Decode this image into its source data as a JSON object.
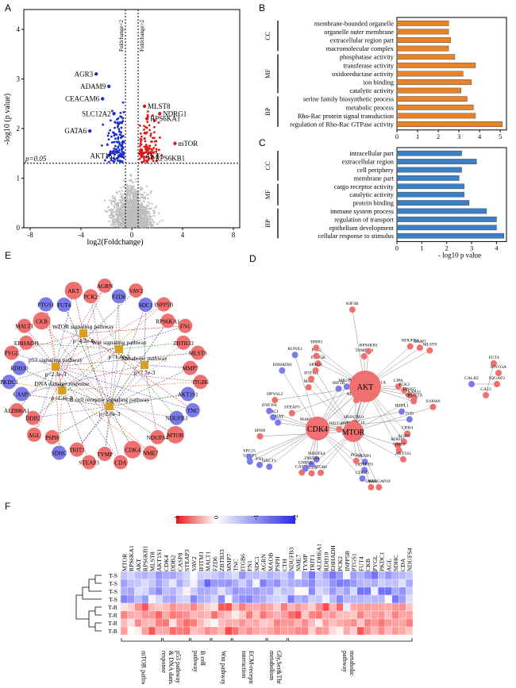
{
  "panels": {
    "A": {
      "label": "A",
      "xlabel": "log2(Foldchange)",
      "ylabel": "-log10 (p value)",
      "vline_left_label": "Foldchange<2",
      "vline_right_label": "Foldchange>2",
      "p_label": "p=0.05",
      "xticks": [
        "-8",
        "-4",
        "0",
        "4",
        "8"
      ],
      "yticks": [
        "0",
        "1",
        "2",
        "3",
        "4"
      ],
      "gene_labels": [
        "AGR3",
        "ADAM9",
        "CEACAM6",
        "SLC12A2",
        "GATA6",
        "AKT1S1",
        "MLST8",
        "NDRG1",
        "RPS6KA1",
        "mTOR",
        "AKT",
        "RPS6KB1"
      ]
    },
    "B": {
      "label": "B",
      "xlabel": "- log10 p value",
      "xticks": [
        "0",
        "1",
        "2",
        "3",
        "4",
        "5"
      ],
      "groups": [
        "CC",
        "MF",
        "BP"
      ],
      "bar_color": "#e8832a"
    },
    "C": {
      "label": "C",
      "xlabel": "- log10 p value",
      "xticks": [
        "0",
        "1",
        "2",
        "3",
        "4"
      ],
      "groups": [
        "CC",
        "MF",
        "BP"
      ],
      "bar_color": "#3d7fc4"
    },
    "D": {
      "label": "D",
      "hubs": [
        "AKT",
        "CDK4",
        "MTOR"
      ],
      "node_labels": [
        "LIPA",
        "OXCT1",
        "ALDH6A1",
        "CBR4",
        "CRAT",
        "RAB31",
        "HSD17B11",
        "EHHADH",
        "RDH10",
        "STEAP3",
        "IRF1B",
        "ARHGAP18",
        "INPP5B",
        "HSDL1",
        "ITGB6",
        "KIF3B",
        "SENP1",
        "SPI00",
        "NDUFB3",
        "NDUFS4",
        "MAZ",
        "PCK2",
        "FN1",
        "LGALS3BP",
        "AGRN",
        "SDC1",
        "FUT4",
        "MYO3A",
        "CALB2",
        "IQGAP3",
        "CA13",
        "MB21B1",
        "OAS1",
        "PTS2",
        "IVD",
        "SCD5",
        "TOMM20",
        "DHTKD1",
        "TNC",
        "MMP7",
        "ZNF593",
        "IFITM1",
        "EPHS5",
        "UBEP1",
        "SOD2",
        "NME7",
        "ZNF394",
        "S100A6",
        "HIST1B1A",
        "RUNX1",
        "AKT1S1",
        "DPYSL2",
        "MALT1",
        "PCK1",
        "TPPP3",
        "ANAPC10",
        "CASP8",
        "RPS6KB1",
        "CDC25",
        "MARCKS",
        "MLST8",
        "GNB1L",
        "SPAG1",
        "TRMT2A",
        "SPC25",
        "TRMT61A"
      ]
    },
    "E": {
      "label": "E",
      "pathways": [
        {
          "name": "mTOR signaling pathway",
          "p": "p=4.2e-6"
        },
        {
          "name": "Wnt signaling pathway",
          "p": "p=1.4e-3"
        },
        {
          "name": "p53 signaling pathway",
          "p": "p=2.1e-3"
        },
        {
          "name": "Metabolic pathway",
          "p": "p=7.7e-3"
        },
        {
          "name": "DNA damage response",
          "p": "p=1.4e-3"
        },
        {
          "name": "B cell receptor signaling pathway",
          "p": "p=2.8e-3"
        }
      ],
      "nodes": [
        {
          "name": "AGRN",
          "c": "r"
        },
        {
          "name": "FZD6",
          "c": "b"
        },
        {
          "name": "VAV2",
          "c": "r"
        },
        {
          "name": "SDC1",
          "c": "b"
        },
        {
          "name": "INPP5B",
          "c": "r"
        },
        {
          "name": "RPS6KA1",
          "c": "r"
        },
        {
          "name": "FN1",
          "c": "r"
        },
        {
          "name": "ZBTB33",
          "c": "r"
        },
        {
          "name": "MLST8",
          "c": "r"
        },
        {
          "name": "MMP7",
          "c": "r"
        },
        {
          "name": "ITGB6",
          "c": "r"
        },
        {
          "name": "AKT1S1",
          "c": "b"
        },
        {
          "name": "TNC",
          "c": "b"
        },
        {
          "name": "NDUFB3",
          "c": "b"
        },
        {
          "name": "MTOR",
          "c": "r"
        },
        {
          "name": "NDUFS4",
          "c": "r"
        },
        {
          "name": "NME7",
          "c": "r"
        },
        {
          "name": "CDK4",
          "c": "r"
        },
        {
          "name": "CDA",
          "c": "r"
        },
        {
          "name": "TYMP",
          "c": "r"
        },
        {
          "name": "STEAP3",
          "c": "r"
        },
        {
          "name": "TRIT1",
          "c": "r"
        },
        {
          "name": "SDHC",
          "c": "b"
        },
        {
          "name": "PSPH",
          "c": "r"
        },
        {
          "name": "AGL",
          "c": "r"
        },
        {
          "name": "DDB2",
          "c": "r"
        },
        {
          "name": "ALDH6A1",
          "c": "r"
        },
        {
          "name": "CASP8",
          "c": "b"
        },
        {
          "name": "PKDC1",
          "c": "b"
        },
        {
          "name": "RDH10",
          "c": "b"
        },
        {
          "name": "PYGL",
          "c": "r"
        },
        {
          "name": "EHHADH",
          "c": "r"
        },
        {
          "name": "MALT1",
          "c": "r"
        },
        {
          "name": "CKB",
          "c": "r"
        },
        {
          "name": "PTGS1",
          "c": "b"
        },
        {
          "name": "FUT4",
          "c": "b"
        },
        {
          "name": "AKT",
          "c": "r"
        },
        {
          "name": "PCK2",
          "c": "r"
        }
      ]
    },
    "F": {
      "label": "F",
      "legend_ticks": [
        "1",
        "0",
        "-1",
        "-2"
      ],
      "rows": [
        "T-S",
        "T-S",
        "T-S",
        "T-S",
        "T-R",
        "T-R",
        "T-R",
        "T-R"
      ],
      "columns": [
        "MTOR",
        "RPS6KA1",
        "AKT",
        "RPS6KB1",
        "MLST8",
        "AKT1S1",
        "CDK4",
        "DDB2",
        "CASP8",
        "STEAP3",
        "VAV2",
        "IFITM1",
        "MALT1",
        "FZD6",
        "ZBTB33",
        "MMP7",
        "TNC",
        "ITGB6",
        "FN1",
        "SDC1",
        "AGRN",
        "MAOB",
        "PSPH",
        "CTH",
        "NDUFB3",
        "NME7",
        "TYMP",
        "TRIT1",
        "ALDH6A1",
        "RDH10",
        "EHHADH",
        "PCK2",
        "INPP5B",
        "PTGS1",
        "FUT4",
        "CKB",
        "PYGL",
        "PKDC1",
        "AGL",
        "SDHC",
        "CDA",
        "NDUFS4"
      ],
      "groups": [
        {
          "label": "mTOR pathway",
          "start": 0,
          "end": 5
        },
        {
          "label": "p53 pathway & DNA damage response",
          "start": 6,
          "end": 9
        },
        {
          "label": "B cell pathway",
          "start": 10,
          "end": 12
        },
        {
          "label": "Wnt pathway",
          "start": 13,
          "end": 15
        },
        {
          "label": "ECM-receptor interaction",
          "start": 16,
          "end": 20
        },
        {
          "label": "Gly,Ser&Thr metabolism",
          "start": 21,
          "end": 23
        },
        {
          "label": "metabolic pathway",
          "start": 24,
          "end": 41
        }
      ]
    }
  },
  "chart_data": [
    {
      "type": "scatter",
      "panel": "A",
      "title": "",
      "xlabel": "log2(Foldchange)",
      "ylabel": "-log10 (p value)",
      "xlim": [
        -8.5,
        8.5
      ],
      "ylim": [
        0,
        4.4
      ],
      "thresholds": {
        "log2fc": [
          -0.5,
          0.5
        ],
        "p_line": 1.3
      },
      "highlighted": [
        {
          "gene": "AGR3",
          "x": -2.8,
          "y": 3.1,
          "group": "down"
        },
        {
          "gene": "ADAM9",
          "x": -1.8,
          "y": 2.85,
          "group": "down"
        },
        {
          "gene": "CEACAM6",
          "x": -2.3,
          "y": 2.6,
          "group": "down"
        },
        {
          "gene": "SLC12A2",
          "x": -1.4,
          "y": 2.3,
          "group": "down"
        },
        {
          "gene": "GATA6",
          "x": -3.3,
          "y": 1.95,
          "group": "down"
        },
        {
          "gene": "AKT1S1",
          "x": -1.0,
          "y": 1.45,
          "group": "down"
        },
        {
          "gene": "MLST8",
          "x": 1.0,
          "y": 2.45,
          "group": "up"
        },
        {
          "gene": "NDRG1",
          "x": 2.2,
          "y": 2.3,
          "group": "up"
        },
        {
          "gene": "RPS6KA1",
          "x": 1.2,
          "y": 2.2,
          "group": "up"
        },
        {
          "gene": "mTOR",
          "x": 3.4,
          "y": 1.7,
          "group": "up"
        },
        {
          "gene": "AKT",
          "x": 0.8,
          "y": 1.45,
          "group": "up"
        },
        {
          "gene": "RPS6KB1",
          "x": 1.6,
          "y": 1.4,
          "group": "up"
        }
      ]
    },
    {
      "type": "bar",
      "panel": "B",
      "orientation": "horizontal",
      "xlabel": "- log10 p value",
      "xlim": [
        0,
        5.3
      ],
      "categories": [
        "membrane-bounded organelle",
        "organelle outer membrane",
        "extracellular region part",
        "macromolecular complex",
        "phosphatase activity",
        "transferase activity",
        "oxidoreductase activity",
        "ion binding",
        "catalytic activity",
        "serine family biosynthetic process",
        "metabolic process",
        "Rho-Rac protein signal transduction",
        "regulation of Rho-Rac GTPase activity"
      ],
      "group_of": [
        "CC",
        "CC",
        "CC",
        "CC",
        "MF",
        "MF",
        "MF",
        "MF",
        "MF",
        "BP",
        "BP",
        "BP",
        "BP"
      ],
      "values": [
        2.5,
        2.5,
        2.6,
        2.5,
        2.8,
        3.8,
        3.2,
        3.6,
        3.1,
        3.4,
        3.7,
        3.8,
        5.1
      ]
    },
    {
      "type": "bar",
      "panel": "C",
      "orientation": "horizontal",
      "xlabel": "- log10 p value",
      "xlim": [
        0,
        4.4
      ],
      "categories": [
        "intracellular part",
        "extracellular region",
        "cell periphery",
        "membrane part",
        "cargo receptor activity",
        "catalytic activity",
        "protein binding",
        "immune system process",
        "regulation of transport",
        "epithelium development",
        "cellular response to stimulus"
      ],
      "group_of": [
        "CC",
        "CC",
        "CC",
        "CC",
        "MF",
        "MF",
        "MF",
        "BP",
        "BP",
        "BP",
        "BP"
      ],
      "values": [
        2.6,
        3.2,
        2.6,
        2.5,
        2.7,
        2.7,
        2.9,
        3.6,
        4.0,
        4.0,
        4.3
      ]
    },
    {
      "type": "heatmap",
      "panel": "F",
      "colorscale": {
        "min": -2,
        "max": 1,
        "ticks": [
          1,
          0,
          -1,
          -2
        ],
        "low_color": "#2a2ae0",
        "high_color": "#e01a1a"
      },
      "rows": [
        "T-S",
        "T-S",
        "T-S",
        "T-S",
        "T-R",
        "T-R",
        "T-R",
        "T-R"
      ],
      "row_class_values": [
        -1,
        -1,
        -1,
        -1,
        1,
        1,
        1,
        1
      ]
    }
  ]
}
